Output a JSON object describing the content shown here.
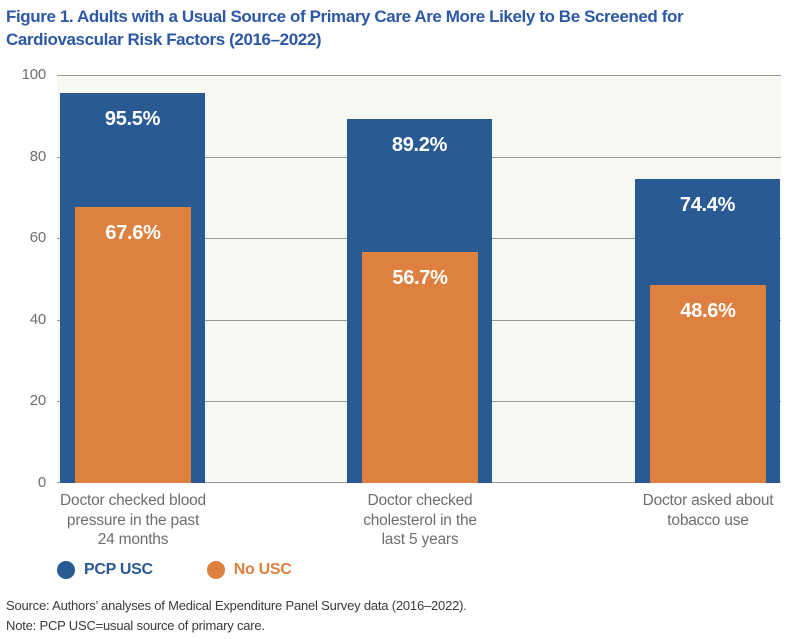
{
  "figure": {
    "title_lines": [
      "Figure 1. Adults with a Usual Source of Primary Care Are More Likely to Be Screened for",
      "Cardiovascular Risk Factors (2016–2022)"
    ]
  },
  "chart_data": {
    "type": "bar",
    "title": "Figure 1. Adults with a Usual Source of Primary Care Are More Likely to Be Screened for Cardiovascular Risk Factors (2016–2022)",
    "categories": [
      "Doctor checked blood\npressure in the past\n24 months",
      "Doctor checked\ncholesterol in the\nlast 5 years",
      "Doctor asked about\ntobacco use"
    ],
    "series": [
      {
        "name": "PCP USC",
        "color": "#2a5a94",
        "values": [
          95.5,
          89.2,
          74.4
        ]
      },
      {
        "name": "No USC",
        "color": "#dd8040",
        "values": [
          67.6,
          56.7,
          48.6
        ]
      }
    ],
    "value_label_format": "{value}%",
    "xlabel": "",
    "ylabel": "",
    "ylim": [
      0,
      100
    ],
    "yticks": [
      0,
      20,
      40,
      60,
      80,
      100
    ],
    "grid": true,
    "legend_position": "bottom-left",
    "style": "overlapped-bars",
    "plot_background": "#f7f7f4",
    "gridline_color": "#9a9a97"
  },
  "footer": {
    "source": "Source: Authors’ analyses of Medical Expenditure Panel Survey data (2016–2022).",
    "note": "Note: PCP USC=usual source of primary care."
  }
}
